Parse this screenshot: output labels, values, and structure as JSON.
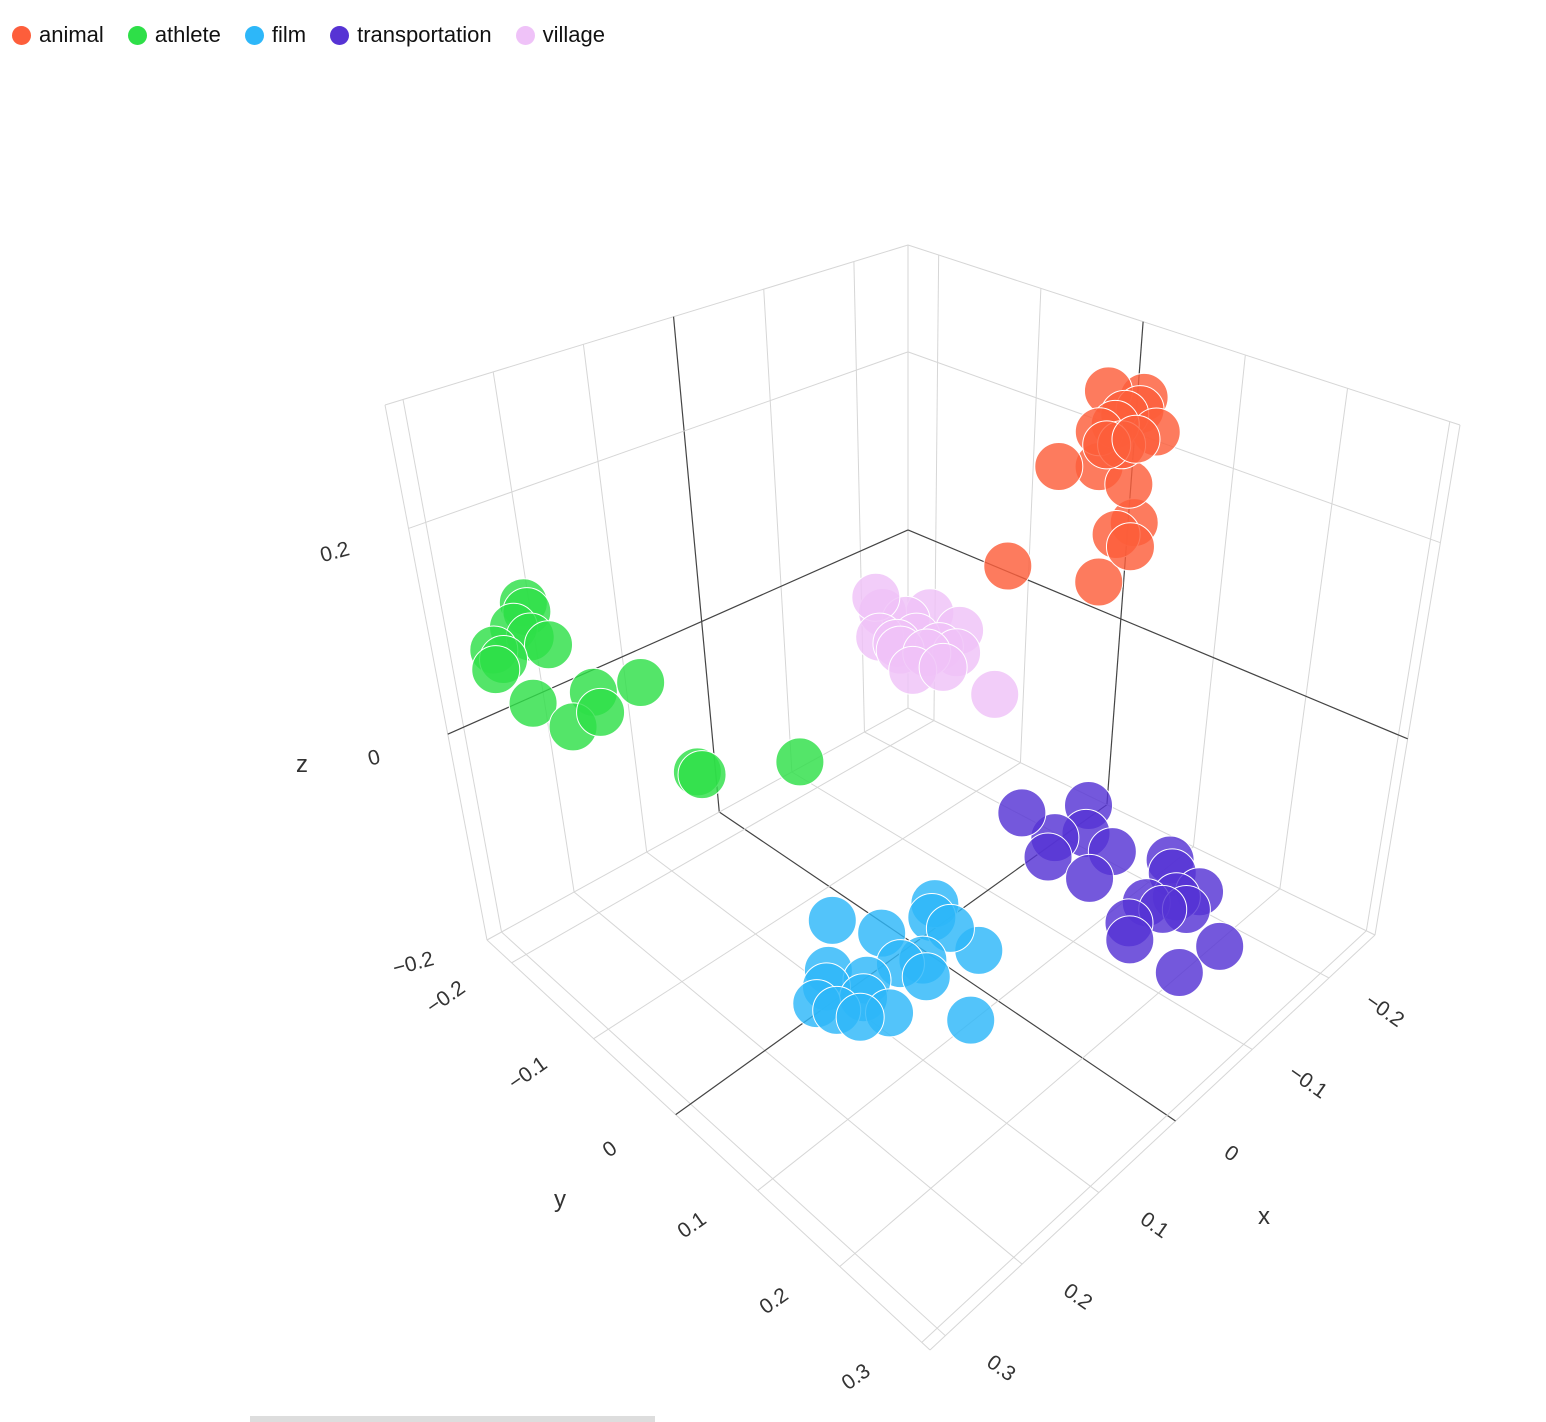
{
  "chart_data": {
    "type": "scatter3d",
    "legend_position": "top-left",
    "grid": true,
    "xlabel": "x",
    "ylabel": "y",
    "zlabel": "z",
    "xlim": [
      -0.26,
      0.32
    ],
    "ylim": [
      -0.23,
      0.31
    ],
    "zlim": [
      -0.2,
      0.32
    ],
    "x_ticks": [
      {
        "v": -0.2,
        "label": "−0.2"
      },
      {
        "v": -0.1,
        "label": "−0.1"
      },
      {
        "v": 0,
        "label": "0"
      },
      {
        "v": 0.1,
        "label": "0.1"
      },
      {
        "v": 0.2,
        "label": "0.2"
      },
      {
        "v": 0.3,
        "label": "0.3"
      }
    ],
    "y_ticks": [
      {
        "v": -0.2,
        "label": "−0.2"
      },
      {
        "v": -0.1,
        "label": "−0.1"
      },
      {
        "v": 0,
        "label": "0"
      },
      {
        "v": 0.1,
        "label": "0.1"
      },
      {
        "v": 0.2,
        "label": "0.2"
      },
      {
        "v": 0.3,
        "label": "0.3"
      }
    ],
    "z_ticks": [
      {
        "v": -0.2,
        "label": "−0.2"
      },
      {
        "v": 0,
        "label": "0"
      },
      {
        "v": 0.2,
        "label": "0.2"
      }
    ],
    "series": [
      {
        "name": "animal",
        "color": "#FD5E3B",
        "points": [
          [
            -0.195,
            0.041,
            0.278
          ],
          [
            -0.22,
            0.057,
            0.268
          ],
          [
            -0.205,
            0.066,
            0.268
          ],
          [
            -0.158,
            0.064,
            0.268
          ],
          [
            -0.175,
            0.066,
            0.268
          ],
          [
            -0.202,
            0.086,
            0.258
          ],
          [
            -0.158,
            0.088,
            0.268
          ],
          [
            -0.149,
            0.08,
            0.268
          ],
          [
            -0.162,
            0.1,
            0.278
          ],
          [
            -0.191,
            0.062,
            0.268
          ],
          [
            -0.129,
            0.046,
            0.238
          ],
          [
            -0.153,
            0.068,
            0.238
          ],
          [
            -0.163,
            0.091,
            0.228
          ],
          [
            -0.168,
            0.092,
            0.188
          ],
          [
            -0.145,
            0.093,
            0.188
          ],
          [
            -0.141,
            0.112,
            0.188
          ],
          [
            -0.127,
            0.09,
            0.148
          ],
          [
            -0.089,
            0.026,
            0.148
          ]
        ]
      },
      {
        "name": "athlete",
        "color": "#2EDF48",
        "points": [
          [
            0.228,
            -0.213,
            0.138
          ],
          [
            0.235,
            -0.203,
            0.138
          ],
          [
            0.256,
            -0.161,
            0.138
          ],
          [
            0.294,
            -0.186,
            0.138
          ],
          [
            0.298,
            -0.172,
            0.138
          ],
          [
            0.259,
            -0.178,
            0.138
          ],
          [
            0.259,
            -0.196,
            0.138
          ],
          [
            0.313,
            -0.167,
            0.138
          ],
          [
            0.284,
            -0.153,
            0.098
          ],
          [
            0.274,
            -0.119,
            0.088
          ],
          [
            0.247,
            -0.121,
            0.108
          ],
          [
            0.253,
            -0.108,
            0.098
          ],
          [
            0.219,
            -0.095,
            0.118
          ],
          [
            0.215,
            -0.038,
            0.058
          ],
          [
            0.215,
            -0.033,
            0.058
          ],
          [
            0.164,
            0.027,
            0.078
          ]
        ]
      },
      {
        "name": "film",
        "color": "#2DB7F9",
        "points": [
          [
            0.122,
            0.023,
            -0.102
          ],
          [
            0.023,
            0.045,
            -0.122
          ],
          [
            0.085,
            0.043,
            -0.122
          ],
          [
            0.039,
            0.056,
            -0.122
          ],
          [
            0.039,
            0.076,
            -0.122
          ],
          [
            0.024,
            0.093,
            -0.142
          ],
          [
            0.155,
            0.048,
            -0.122
          ],
          [
            0.105,
            0.081,
            -0.122
          ],
          [
            0.088,
            0.09,
            -0.122
          ],
          [
            0.103,
            0.107,
            -0.122
          ],
          [
            0.142,
            0.078,
            -0.122
          ],
          [
            0.173,
            0.062,
            -0.122
          ],
          [
            0.196,
            0.072,
            -0.122
          ],
          [
            0.191,
            0.089,
            -0.122
          ],
          [
            0.162,
            0.092,
            -0.122
          ],
          [
            0.162,
            0.12,
            -0.122
          ],
          [
            0.184,
            0.108,
            -0.122
          ],
          [
            0.09,
            0.143,
            -0.152
          ]
        ]
      },
      {
        "name": "transportation",
        "color": "#5633D4",
        "points": [
          [
            -0.048,
            0.076,
            -0.05
          ],
          [
            -0.116,
            0.087,
            -0.07
          ],
          [
            -0.063,
            0.098,
            -0.07
          ],
          [
            -0.086,
            0.111,
            -0.07
          ],
          [
            -0.039,
            0.112,
            -0.07
          ],
          [
            -0.083,
            0.142,
            -0.07
          ],
          [
            -0.042,
            0.154,
            -0.07
          ],
          [
            -0.109,
            0.181,
            -0.07
          ],
          [
            -0.097,
            0.194,
            -0.07
          ],
          [
            -0.051,
            0.207,
            -0.07
          ],
          [
            -0.075,
            0.218,
            -0.07
          ],
          [
            -0.094,
            0.226,
            -0.07
          ],
          [
            -0.068,
            0.235,
            -0.07
          ],
          [
            -0.02,
            0.216,
            -0.07
          ],
          [
            -0.003,
            0.232,
            -0.07
          ],
          [
            -0.081,
            0.259,
            -0.1
          ],
          [
            -0.03,
            0.261,
            -0.1
          ],
          [
            -0.054,
            0.222,
            -0.07
          ]
        ]
      },
      {
        "name": "village",
        "color": "#EFC2F8",
        "points": [
          [
            -0.048,
            -0.08,
            0.08
          ],
          [
            -0.057,
            -0.081,
            0.06
          ],
          [
            -0.063,
            -0.061,
            0.06
          ],
          [
            -0.085,
            -0.055,
            0.06
          ],
          [
            -0.095,
            -0.032,
            0.05
          ],
          [
            -0.03,
            -0.06,
            0.06
          ],
          [
            -0.034,
            -0.045,
            0.06
          ],
          [
            -0.052,
            -0.04,
            0.06
          ],
          [
            -0.056,
            -0.019,
            0.06
          ],
          [
            -0.06,
            -0.004,
            0.06
          ],
          [
            -0.026,
            -0.021,
            0.05
          ],
          [
            -0.037,
            0.002,
            0.06
          ],
          [
            -0.029,
            -0.037,
            0.06
          ],
          [
            -0.042,
            -0.02,
            0.06
          ],
          [
            -0.071,
            0.027,
            0.03
          ]
        ]
      }
    ]
  }
}
